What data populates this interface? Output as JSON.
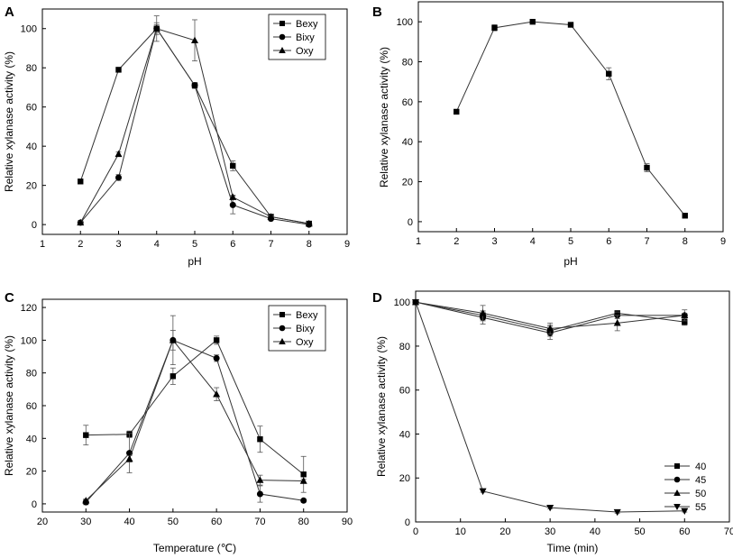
{
  "chart_data": [
    {
      "panel_label": "A",
      "type": "line",
      "xlabel": "pH",
      "ylabel": "Relative xylanase activity (%)",
      "xlim": [
        1,
        9
      ],
      "ylim": [
        -5,
        110
      ],
      "xticks": [
        1,
        2,
        3,
        4,
        5,
        6,
        7,
        8,
        9
      ],
      "yticks": [
        0,
        20,
        40,
        60,
        80,
        100
      ],
      "legend_position": "top-right",
      "series": [
        {
          "name": "Bexy",
          "marker": "square",
          "x": [
            2,
            3,
            4,
            5,
            6,
            7,
            8
          ],
          "y": [
            22,
            79,
            100,
            71,
            30,
            4,
            0.5
          ],
          "err": [
            0,
            0,
            2,
            1.5,
            2.5,
            0.5,
            0
          ]
        },
        {
          "name": "Bixy",
          "marker": "circle",
          "x": [
            2,
            3,
            4,
            5,
            6,
            7,
            8
          ],
          "y": [
            1,
            24,
            100,
            71,
            10,
            3,
            0
          ],
          "err": [
            1,
            1.5,
            3,
            1.5,
            4.5,
            0.5,
            0
          ]
        },
        {
          "name": "Oxy",
          "marker": "triangle-up",
          "x": [
            2,
            3,
            4,
            5,
            6,
            7,
            8
          ],
          "y": [
            1,
            36,
            100,
            94,
            14,
            4,
            0.5
          ],
          "err": [
            0.5,
            1,
            6.5,
            10.5,
            1,
            0.5,
            0
          ]
        }
      ]
    },
    {
      "panel_label": "B",
      "type": "line",
      "xlabel": "pH",
      "ylabel": "Relative xylanase activity (%)",
      "xlim": [
        1,
        9
      ],
      "ylim": [
        -5,
        110
      ],
      "xticks": [
        1,
        2,
        3,
        4,
        5,
        6,
        7,
        8,
        9
      ],
      "yticks": [
        0,
        20,
        40,
        60,
        80,
        100
      ],
      "series": [
        {
          "name": "",
          "marker": "square",
          "x": [
            2,
            3,
            4,
            5,
            6,
            7,
            8
          ],
          "y": [
            55,
            97,
            100,
            98.5,
            74,
            27,
            3
          ],
          "err": [
            0.5,
            1.5,
            0.5,
            0.5,
            3,
            2,
            0
          ]
        }
      ]
    },
    {
      "panel_label": "C",
      "type": "line",
      "xlabel": "Temperature (℃)",
      "ylabel": "Relative xylanase activity (%)",
      "xlim": [
        20,
        90
      ],
      "ylim": [
        -5,
        125
      ],
      "xticks": [
        20,
        30,
        40,
        50,
        60,
        70,
        80,
        90
      ],
      "yticks": [
        0,
        20,
        40,
        60,
        80,
        100,
        120
      ],
      "legend_position": "top-right",
      "series": [
        {
          "name": "Bexy",
          "marker": "square",
          "x": [
            30,
            40,
            50,
            60,
            70,
            80
          ],
          "y": [
            42,
            42.5,
            78,
            100,
            39.5,
            18
          ],
          "err": [
            6,
            2,
            5,
            2.5,
            8,
            11
          ]
        },
        {
          "name": "Bixy",
          "marker": "circle",
          "x": [
            30,
            40,
            50,
            60,
            70,
            80
          ],
          "y": [
            1,
            31,
            100,
            89,
            6,
            2
          ],
          "err": [
            1.5,
            12,
            15,
            2,
            5,
            1
          ]
        },
        {
          "name": "Oxy",
          "marker": "triangle-up",
          "x": [
            30,
            40,
            50,
            60,
            70,
            80
          ],
          "y": [
            2,
            27.5,
            100,
            67,
            14.5,
            14
          ],
          "err": [
            1,
            2,
            6,
            4,
            3,
            1
          ]
        }
      ]
    },
    {
      "panel_label": "D",
      "type": "line",
      "xlabel": "Time (min)",
      "ylabel": "Relative xylanase activity (%)",
      "xlim": [
        0,
        70
      ],
      "ylim": [
        0,
        105
      ],
      "xticks": [
        0,
        10,
        20,
        30,
        40,
        50,
        60,
        70
      ],
      "yticks": [
        0,
        20,
        40,
        60,
        80,
        100
      ],
      "legend_position": "bottom-right",
      "series": [
        {
          "name": "40",
          "marker": "square",
          "x": [
            0,
            15,
            30,
            45,
            60
          ],
          "y": [
            100,
            94,
            87,
            95,
            91
          ],
          "err": [
            0,
            2,
            2.5,
            1,
            1.5
          ]
        },
        {
          "name": "45",
          "marker": "circle",
          "x": [
            0,
            15,
            30,
            45,
            60
          ],
          "y": [
            100,
            93,
            86,
            94,
            94
          ],
          "err": [
            0,
            3,
            3,
            1.5,
            2.5
          ]
        },
        {
          "name": "50",
          "marker": "triangle-up",
          "x": [
            0,
            15,
            30,
            45,
            60
          ],
          "y": [
            100,
            95,
            88,
            90.5,
            94
          ],
          "err": [
            0,
            3.5,
            2.5,
            3.5,
            1
          ]
        },
        {
          "name": "55",
          "marker": "triangle-down",
          "x": [
            0,
            15,
            30,
            45,
            60
          ],
          "y": [
            100,
            14,
            6.5,
            4.5,
            5
          ],
          "err": [
            0,
            0.5,
            0.5,
            0.5,
            0.5
          ]
        }
      ]
    }
  ]
}
